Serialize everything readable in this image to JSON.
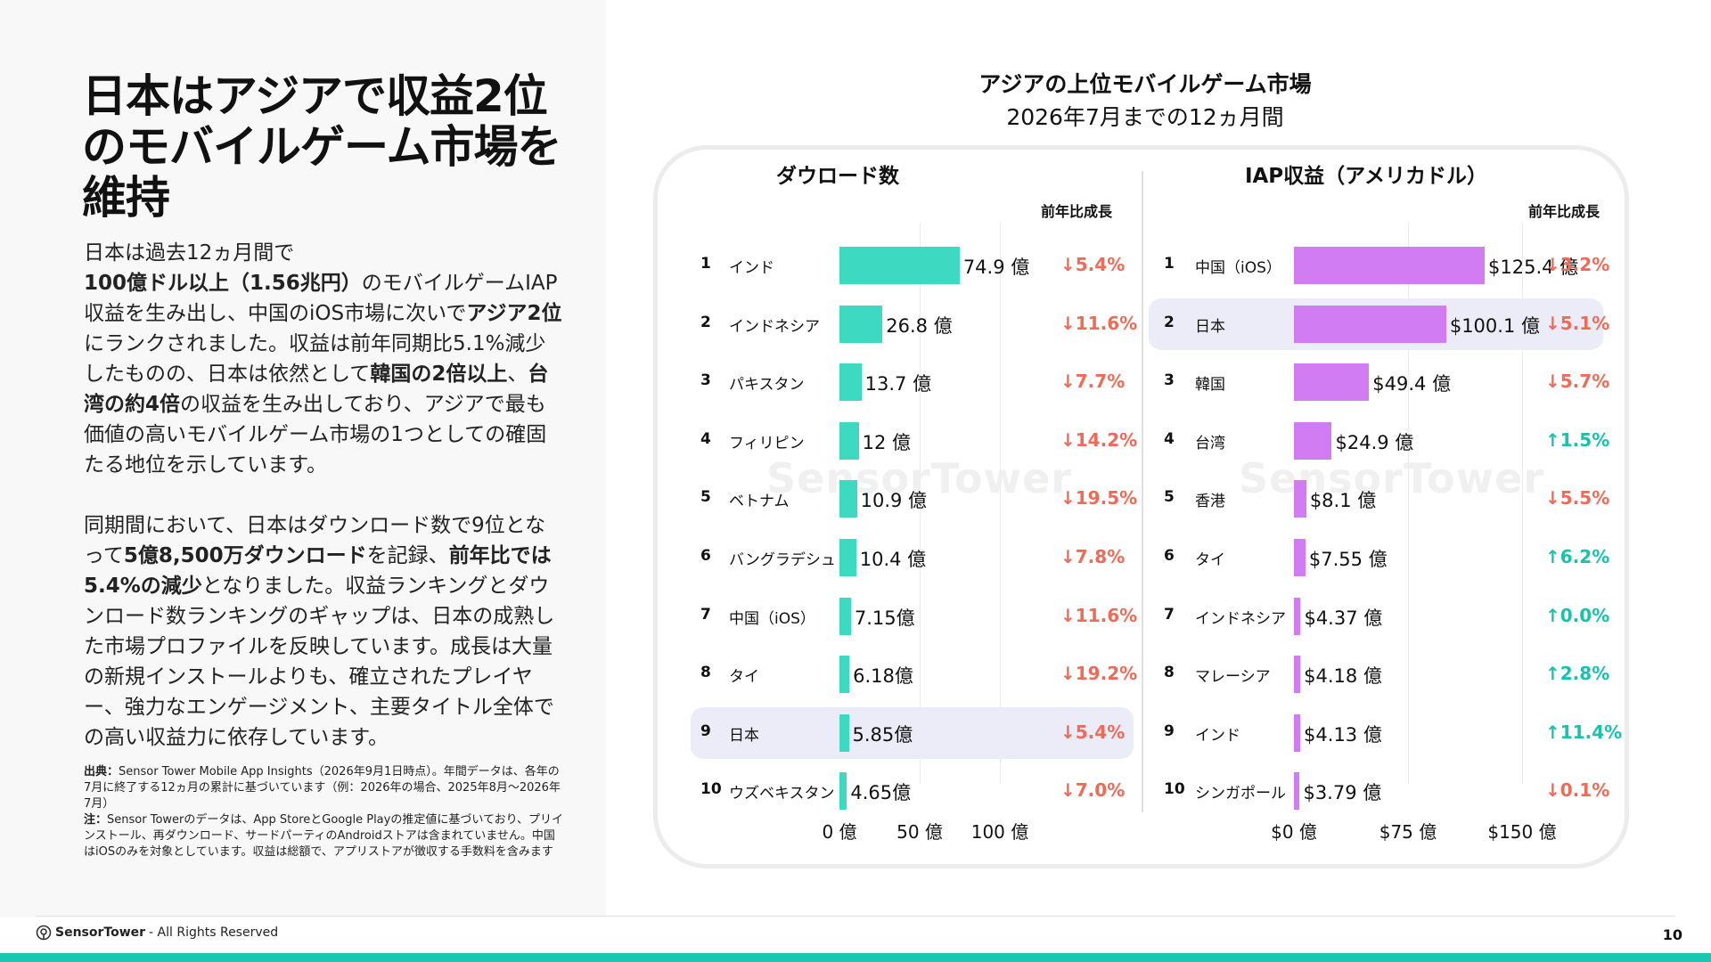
{
  "headline": "日本はアジアで収益2位のモバイルゲーム市場を維持",
  "body": {
    "p1": [
      {
        "t": "日本は過去12ヵ月間で"
      },
      {
        "t": "100億ドル以上（1.56兆円）",
        "b": true
      },
      {
        "t": "のモバイルゲームIAP収益を生み出し、中国のiOS市場に次いで"
      },
      {
        "t": "アジア2位",
        "b": true
      },
      {
        "t": "にランクされました。収益は前年同期比5.1%減少したものの、日本は依然として"
      },
      {
        "t": "韓国の2倍以上",
        "b": true
      },
      {
        "t": "、"
      },
      {
        "t": "台湾の約4倍",
        "b": true
      },
      {
        "t": "の収益を生み出しており、アジアで最も価値の高いモバイルゲーム市場の1つとしての確固たる地位を示しています。"
      }
    ],
    "p2": [
      {
        "t": "同期間において、日本はダウンロード数で9位となって"
      },
      {
        "t": "5億8,500万ダウンロード",
        "b": true
      },
      {
        "t": "を記録、"
      },
      {
        "t": "前年比では5.4%の減少",
        "b": true
      },
      {
        "t": "となりました。収益ランキングとダウンロード数ランキングのギャップは、日本の成熟した市場プロファイルを反映しています。成長は大量の新規インストールよりも、確立されたプレイヤー、強力なエンゲージメント、主要タイトル全体での高い収益力に依存しています。"
      }
    ]
  },
  "footnote": {
    "source_label": "出典：",
    "source_text": "Sensor Tower Mobile App Insights（2026年9月1日時点）。年間データは、各年の7月に終了する12ヵ月の累計に基づいています（例：2026年の場合、2025年8月～2026年7月）",
    "note_label": "注：",
    "note_text": "Sensor Towerのデータは、App StoreとGoogle Playの推定値に基づいており、プリインストール、再ダウンロード、サードパーティのAndroidストアは含まれていません。中国はiOSのみを対象としています。収益は総額で、アプリストアが徴収する手数料を含みます"
  },
  "footer": {
    "brand": "SensorTower",
    "rights": " - All Rights Reserved",
    "page": "10"
  },
  "watermark": "SensorTower",
  "chart_data": {
    "type": "bar",
    "title": "アジアの上位モバイルゲーム市場",
    "subtitle": "2026年7月までの12ヵ月間",
    "yoy_label": "前年比成長",
    "highlight": "日本",
    "colors": {
      "downloads": "#3dd9c1",
      "revenue": "#d27cf4",
      "down": "#ef6b57",
      "up": "#18c3aa",
      "highlight": "#ececf8"
    },
    "panels": [
      {
        "title": "ダウロード数",
        "series_key": "downloads",
        "unit": "億",
        "xlim": [
          0,
          100
        ],
        "ticks": [
          {
            "v": 0,
            "label": "0 億"
          },
          {
            "v": 50,
            "label": "50 億"
          },
          {
            "v": 100,
            "label": "100 億"
          }
        ],
        "rows": [
          {
            "rank": "1",
            "country": "インド",
            "value": 74.9,
            "label": "74.9 億",
            "yoy": "5.4%",
            "dir": "down"
          },
          {
            "rank": "2",
            "country": "インドネシア",
            "value": 26.8,
            "label": "26.8 億",
            "yoy": "11.6%",
            "dir": "down"
          },
          {
            "rank": "3",
            "country": "パキスタン",
            "value": 13.7,
            "label": "13.7 億",
            "yoy": "7.7%",
            "dir": "down"
          },
          {
            "rank": "4",
            "country": "フィリピン",
            "value": 12,
            "label": "12 億",
            "yoy": "14.2%",
            "dir": "down"
          },
          {
            "rank": "5",
            "country": "ベトナム",
            "value": 10.9,
            "label": "10.9 億",
            "yoy": "19.5%",
            "dir": "down"
          },
          {
            "rank": "6",
            "country": "バングラデシュ",
            "value": 10.4,
            "label": "10.4 億",
            "yoy": "7.8%",
            "dir": "down"
          },
          {
            "rank": "7",
            "country": "中国（iOS）",
            "value": 7.15,
            "label": "7.15億",
            "yoy": "11.6%",
            "dir": "down"
          },
          {
            "rank": "8",
            "country": "タイ",
            "value": 6.18,
            "label": "6.18億",
            "yoy": "19.2%",
            "dir": "down"
          },
          {
            "rank": "9",
            "country": "日本",
            "value": 5.85,
            "label": "5.85億",
            "yoy": "5.4%",
            "dir": "down"
          },
          {
            "rank": "10",
            "country": "ウズベキスタン",
            "value": 4.65,
            "label": "4.65億",
            "yoy": "7.0%",
            "dir": "down"
          }
        ]
      },
      {
        "title": "IAP収益（アメリカドル）",
        "series_key": "revenue",
        "unit": "億ドル",
        "xlim": [
          0,
          150
        ],
        "ticks": [
          {
            "v": 0,
            "label": "$0 億"
          },
          {
            "v": 75,
            "label": "$75 億"
          },
          {
            "v": 150,
            "label": "$150 億"
          }
        ],
        "rows": [
          {
            "rank": "1",
            "country": "中国（iOS）",
            "value": 125.4,
            "label": "$125.4 億",
            "yoy": "3.2%",
            "dir": "down"
          },
          {
            "rank": "2",
            "country": "日本",
            "value": 100.1,
            "label": "$100.1 億",
            "yoy": "5.1%",
            "dir": "down"
          },
          {
            "rank": "3",
            "country": "韓国",
            "value": 49.4,
            "label": "$49.4 億",
            "yoy": "5.7%",
            "dir": "down"
          },
          {
            "rank": "4",
            "country": "台湾",
            "value": 24.9,
            "label": "$24.9 億",
            "yoy": "1.5%",
            "dir": "up"
          },
          {
            "rank": "5",
            "country": "香港",
            "value": 8.1,
            "label": "$8.1 億",
            "yoy": "5.5%",
            "dir": "down"
          },
          {
            "rank": "6",
            "country": "タイ",
            "value": 7.55,
            "label": "$7.55 億",
            "yoy": "6.2%",
            "dir": "up"
          },
          {
            "rank": "7",
            "country": "インドネシア",
            "value": 4.37,
            "label": "$4.37 億",
            "yoy": "0.0%",
            "dir": "up"
          },
          {
            "rank": "8",
            "country": "マレーシア",
            "value": 4.18,
            "label": "$4.18 億",
            "yoy": "2.8%",
            "dir": "up"
          },
          {
            "rank": "9",
            "country": "インド",
            "value": 4.13,
            "label": "$4.13 億",
            "yoy": "11.4%",
            "dir": "up"
          },
          {
            "rank": "10",
            "country": "シンガポール",
            "value": 3.79,
            "label": "$3.79 億",
            "yoy": "0.1%",
            "dir": "down"
          }
        ]
      }
    ]
  }
}
